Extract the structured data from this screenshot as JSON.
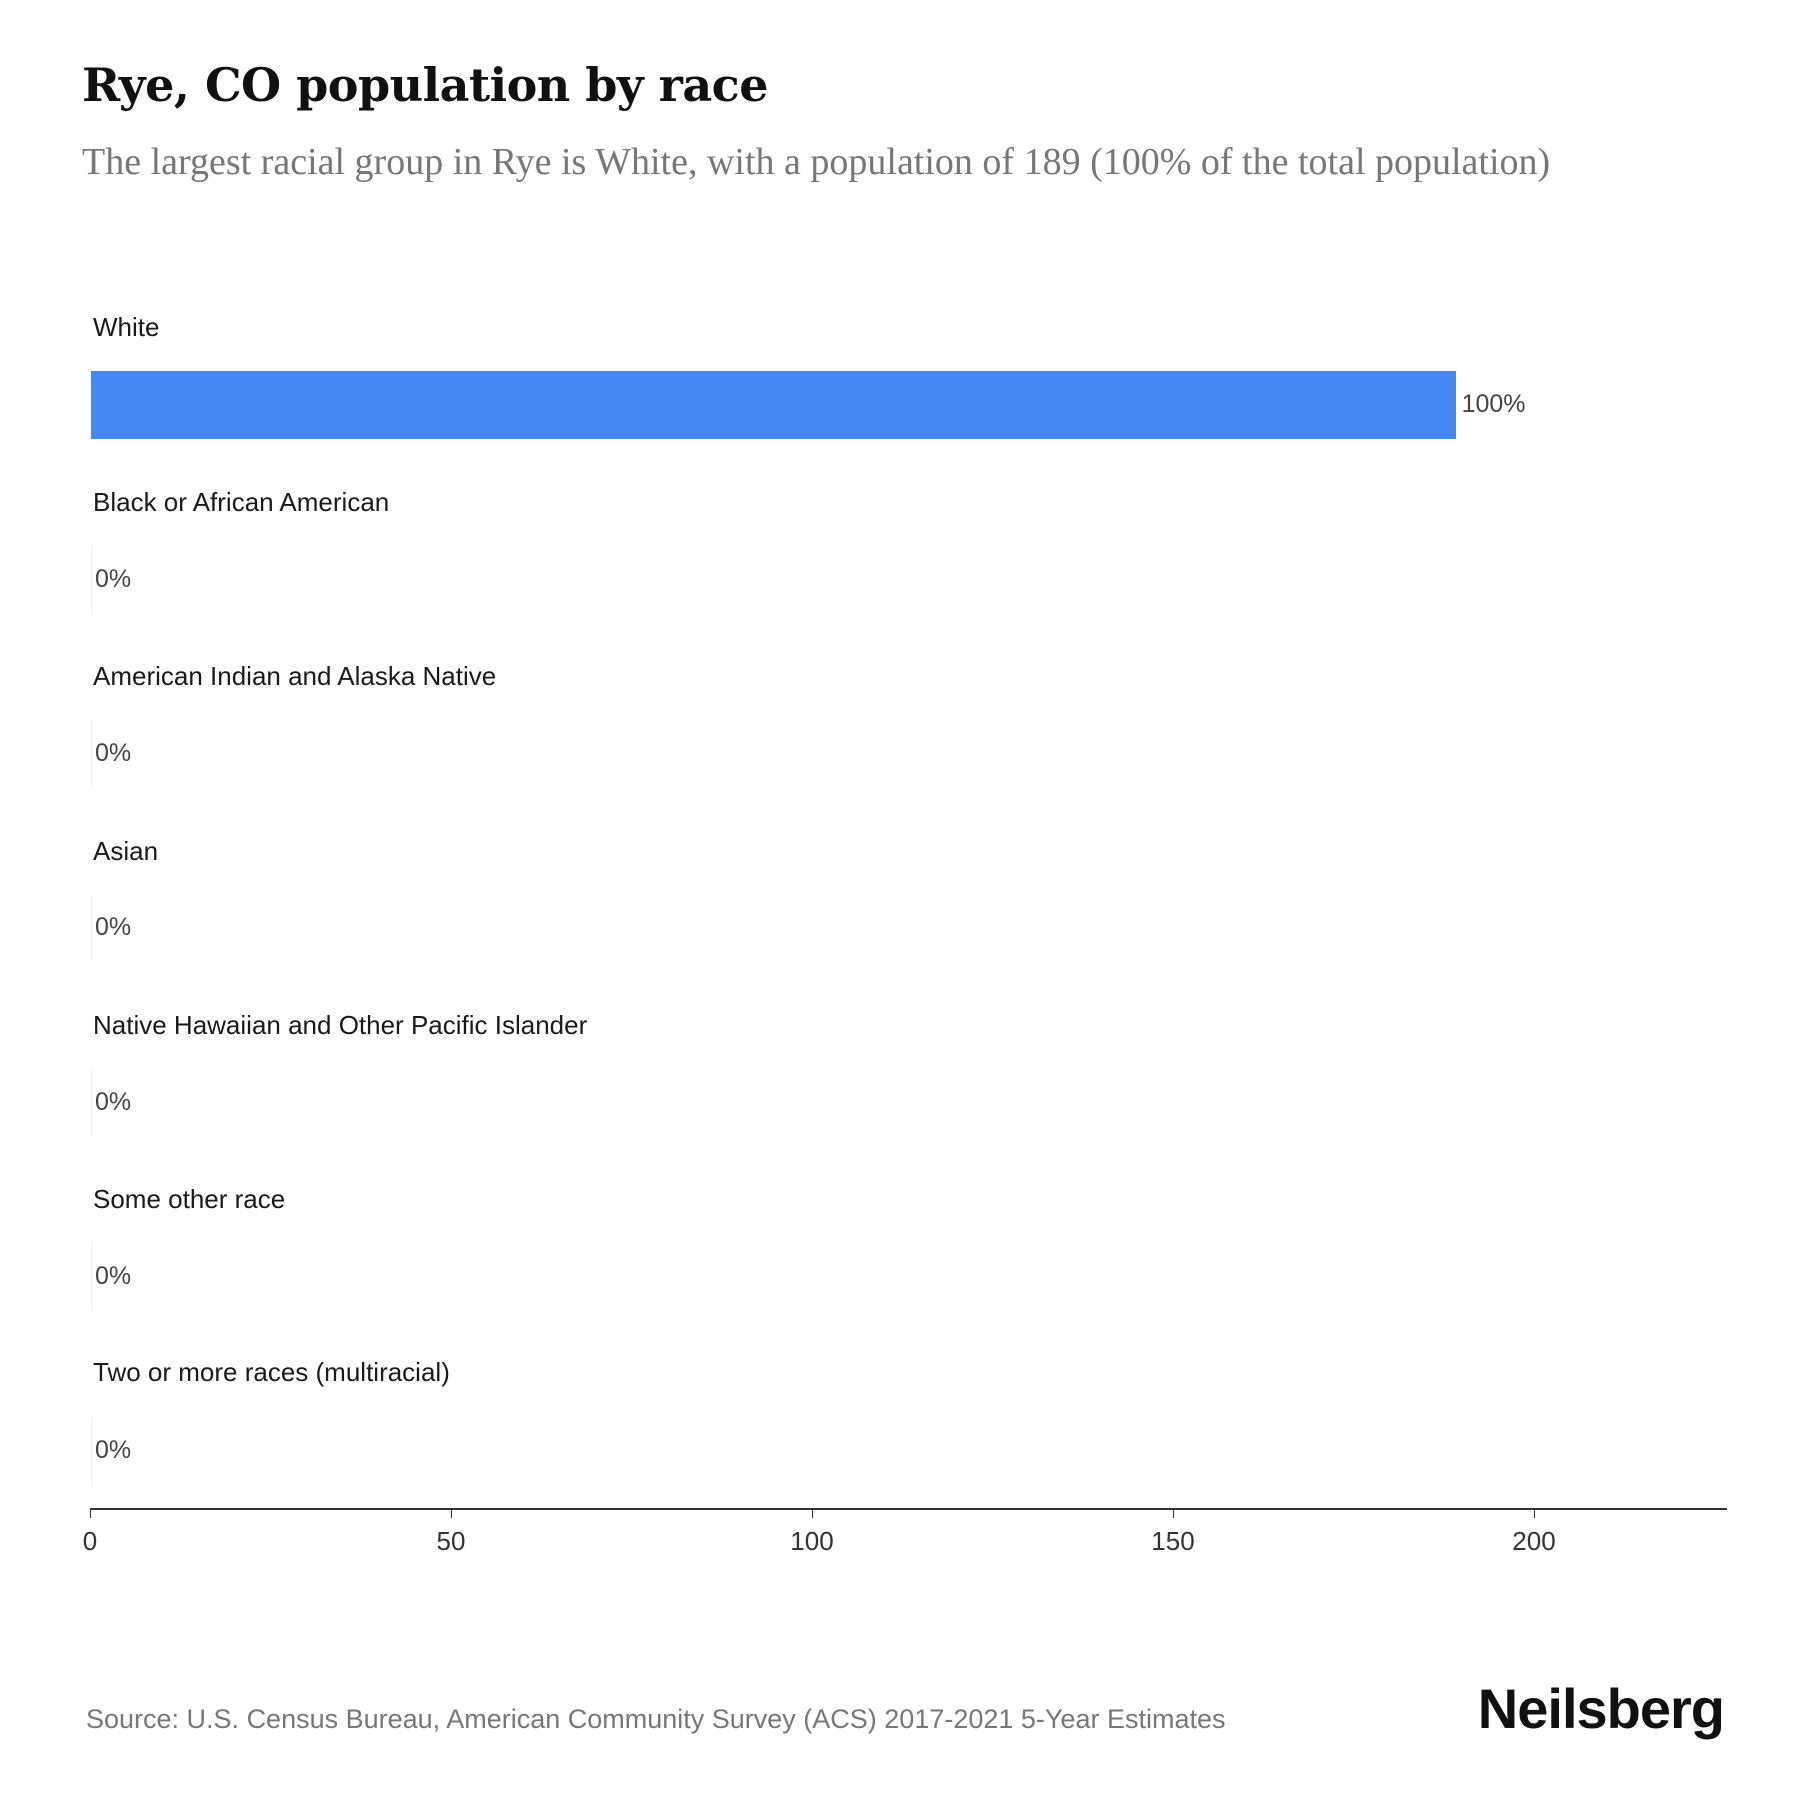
{
  "header": {
    "title": "Rye, CO population by race",
    "subtitle": "The largest racial group in Rye is White, with a population of 189 (100% of the total population)"
  },
  "rows": [
    {
      "label": "White",
      "value": 189,
      "pct_label": "100%"
    },
    {
      "label": "Black or African American",
      "value": 0,
      "pct_label": "0%"
    },
    {
      "label": "American Indian and Alaska Native",
      "value": 0,
      "pct_label": "0%"
    },
    {
      "label": "Asian",
      "value": 0,
      "pct_label": "0%"
    },
    {
      "label": "Native Hawaiian and Other Pacific Islander",
      "value": 0,
      "pct_label": "0%"
    },
    {
      "label": "Some other race",
      "value": 0,
      "pct_label": "0%"
    },
    {
      "label": "Two or more races (multiracial)",
      "value": 0,
      "pct_label": "0%"
    }
  ],
  "axis": {
    "ticks": [
      "0",
      "50",
      "100",
      "150",
      "200"
    ]
  },
  "footer": {
    "source": "Source: U.S. Census Bureau, American Community Survey (ACS) 2017-2021 5-Year Estimates",
    "logo": "Neilsberg"
  },
  "colors": {
    "bar": "#4688f1"
  },
  "chart_data": {
    "type": "bar",
    "orientation": "horizontal",
    "title": "Rye, CO population by race",
    "subtitle": "The largest racial group in Rye is White, with a population of 189 (100% of the total population)",
    "categories": [
      "White",
      "Black or African American",
      "American Indian and Alaska Native",
      "Asian",
      "Native Hawaiian and Other Pacific Islander",
      "Some other race",
      "Two or more races (multiracial)"
    ],
    "values": [
      189,
      0,
      0,
      0,
      0,
      0,
      0
    ],
    "data_labels": [
      "100%",
      "0%",
      "0%",
      "0%",
      "0%",
      "0%",
      "0%"
    ],
    "xlabel": "",
    "ylabel": "",
    "xlim": [
      0,
      227
    ],
    "xticks": [
      0,
      50,
      100,
      150,
      200
    ],
    "grid": false,
    "legend": null,
    "source": "Source: U.S. Census Bureau, American Community Survey (ACS) 2017-2021 5-Year Estimates"
  }
}
